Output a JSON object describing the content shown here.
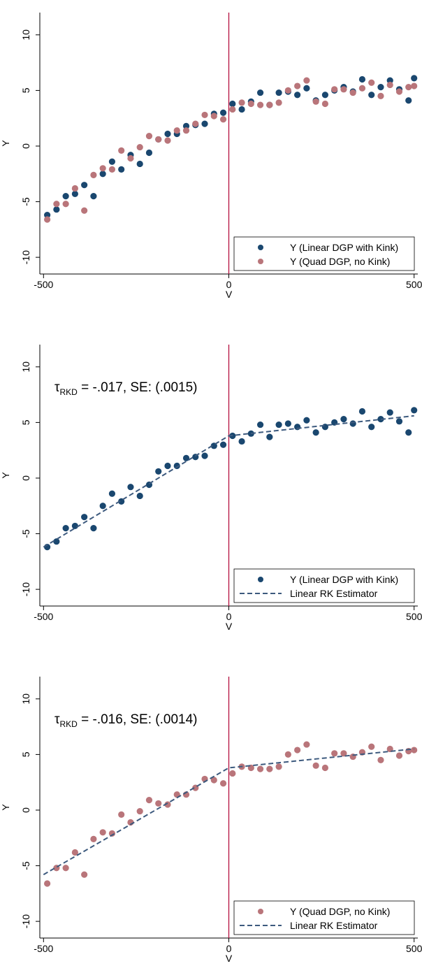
{
  "colors": {
    "linear_dgp": "#1a476f",
    "quad_dgp": "#b9757a",
    "fit_line": "#3d5a7e",
    "cutoff": "#b5103f"
  },
  "chart_data": [
    {
      "type": "scatter",
      "xlabel": "V",
      "ylabel": "Y",
      "xlim": [
        -510,
        510
      ],
      "ylim": [
        -11.5,
        12
      ],
      "xticks": [
        -500,
        0,
        500
      ],
      "yticks": [
        -10,
        -5,
        0,
        5,
        10
      ],
      "vertical_line_x": 0,
      "legend_position": "bottom-right",
      "annotation": null,
      "series": [
        {
          "name": "Y (Linear DGP with Kink)",
          "color": "#1a476f",
          "x": [
            -490,
            -465,
            -440,
            -415,
            -390,
            -365,
            -340,
            -315,
            -290,
            -265,
            -240,
            -215,
            -190,
            -165,
            -140,
            -115,
            -90,
            -65,
            -40,
            -15,
            10,
            35,
            60,
            85,
            110,
            135,
            160,
            185,
            210,
            235,
            260,
            285,
            310,
            335,
            360,
            385,
            410,
            435,
            460,
            485,
            500
          ],
          "y": [
            -6.2,
            -5.7,
            -4.5,
            -4.3,
            -3.5,
            -4.5,
            -2.5,
            -1.4,
            -2.1,
            -0.8,
            -1.6,
            -0.6,
            0.6,
            1.1,
            1.1,
            1.8,
            1.9,
            2.0,
            2.9,
            3.0,
            3.8,
            3.3,
            4.0,
            4.8,
            3.7,
            4.8,
            4.9,
            4.6,
            5.2,
            4.1,
            4.6,
            5.0,
            5.3,
            4.9,
            6.0,
            4.6,
            5.3,
            5.9,
            5.1,
            4.1,
            6.1
          ]
        },
        {
          "name": "Y (Quad DGP, no Kink)",
          "color": "#b9757a",
          "x": [
            -490,
            -465,
            -440,
            -415,
            -390,
            -365,
            -340,
            -315,
            -290,
            -265,
            -240,
            -215,
            -190,
            -165,
            -140,
            -115,
            -90,
            -65,
            -40,
            -15,
            10,
            35,
            60,
            85,
            110,
            135,
            160,
            185,
            210,
            235,
            260,
            285,
            310,
            335,
            360,
            385,
            410,
            435,
            460,
            485,
            500
          ],
          "y": [
            -6.6,
            -5.2,
            -5.2,
            -3.8,
            -5.8,
            -2.6,
            -2.0,
            -2.1,
            -0.4,
            -1.1,
            -0.1,
            0.9,
            0.6,
            0.5,
            1.4,
            1.4,
            2.0,
            2.8,
            2.7,
            2.4,
            3.3,
            3.9,
            3.8,
            3.7,
            3.7,
            3.9,
            5.0,
            5.4,
            5.9,
            4.0,
            3.8,
            5.1,
            5.1,
            4.8,
            5.2,
            5.7,
            4.5,
            5.5,
            4.9,
            5.3,
            5.4
          ]
        }
      ]
    },
    {
      "type": "scatter",
      "xlabel": "V",
      "ylabel": "Y",
      "xlim": [
        -510,
        510
      ],
      "ylim": [
        -11.5,
        12
      ],
      "xticks": [
        -500,
        0,
        500
      ],
      "yticks": [
        -10,
        -5,
        0,
        5,
        10
      ],
      "vertical_line_x": 0,
      "legend_position": "bottom-right",
      "annotation": {
        "main": "τ",
        "sub": "RKD",
        "rest": " = -.017, SE: (.0015)"
      },
      "series": [
        {
          "name": "Y (Linear DGP with Kink)",
          "color": "#1a476f",
          "x": [
            -490,
            -465,
            -440,
            -415,
            -390,
            -365,
            -340,
            -315,
            -290,
            -265,
            -240,
            -215,
            -190,
            -165,
            -140,
            -115,
            -90,
            -65,
            -40,
            -15,
            10,
            35,
            60,
            85,
            110,
            135,
            160,
            185,
            210,
            235,
            260,
            285,
            310,
            335,
            360,
            385,
            410,
            435,
            460,
            485,
            500
          ],
          "y": [
            -6.2,
            -5.7,
            -4.5,
            -4.3,
            -3.5,
            -4.5,
            -2.5,
            -1.4,
            -2.1,
            -0.8,
            -1.6,
            -0.6,
            0.6,
            1.1,
            1.1,
            1.8,
            1.9,
            2.0,
            2.9,
            3.0,
            3.8,
            3.3,
            4.0,
            4.8,
            3.7,
            4.8,
            4.9,
            4.6,
            5.2,
            4.1,
            4.6,
            5.0,
            5.3,
            4.9,
            6.0,
            4.6,
            5.3,
            5.9,
            5.1,
            4.1,
            6.1
          ]
        },
        {
          "name": "Linear RK Estimator",
          "type": "line",
          "color": "#3d5a7e",
          "x": [
            -500,
            0,
            500
          ],
          "y": [
            -6.2,
            3.8,
            5.6
          ]
        }
      ]
    },
    {
      "type": "scatter",
      "xlabel": "V",
      "ylabel": "Y",
      "xlim": [
        -510,
        510
      ],
      "ylim": [
        -11.5,
        12
      ],
      "xticks": [
        -500,
        0,
        500
      ],
      "yticks": [
        -10,
        -5,
        0,
        5,
        10
      ],
      "vertical_line_x": 0,
      "legend_position": "bottom-right",
      "annotation": {
        "main": "τ",
        "sub": "RKD",
        "rest": " = -.016, SE: (.0014)"
      },
      "series": [
        {
          "name": "Y (Quad DGP, no Kink)",
          "color": "#b9757a",
          "x": [
            -490,
            -465,
            -440,
            -415,
            -390,
            -365,
            -340,
            -315,
            -290,
            -265,
            -240,
            -215,
            -190,
            -165,
            -140,
            -115,
            -90,
            -65,
            -40,
            -15,
            10,
            35,
            60,
            85,
            110,
            135,
            160,
            185,
            210,
            235,
            260,
            285,
            310,
            335,
            360,
            385,
            410,
            435,
            460,
            485,
            500
          ],
          "y": [
            -6.6,
            -5.2,
            -5.2,
            -3.8,
            -5.8,
            -2.6,
            -2.0,
            -2.1,
            -0.4,
            -1.1,
            -0.1,
            0.9,
            0.6,
            0.5,
            1.4,
            1.4,
            2.0,
            2.8,
            2.7,
            2.4,
            3.3,
            3.9,
            3.8,
            3.7,
            3.7,
            3.9,
            5.0,
            5.4,
            5.9,
            4.0,
            3.8,
            5.1,
            5.1,
            4.8,
            5.2,
            5.7,
            4.5,
            5.5,
            4.9,
            5.3,
            5.4
          ]
        },
        {
          "name": "Linear RK Estimator",
          "type": "line",
          "color": "#3d5a7e",
          "x": [
            -500,
            0,
            500
          ],
          "y": [
            -5.8,
            3.8,
            5.5
          ]
        }
      ]
    }
  ]
}
